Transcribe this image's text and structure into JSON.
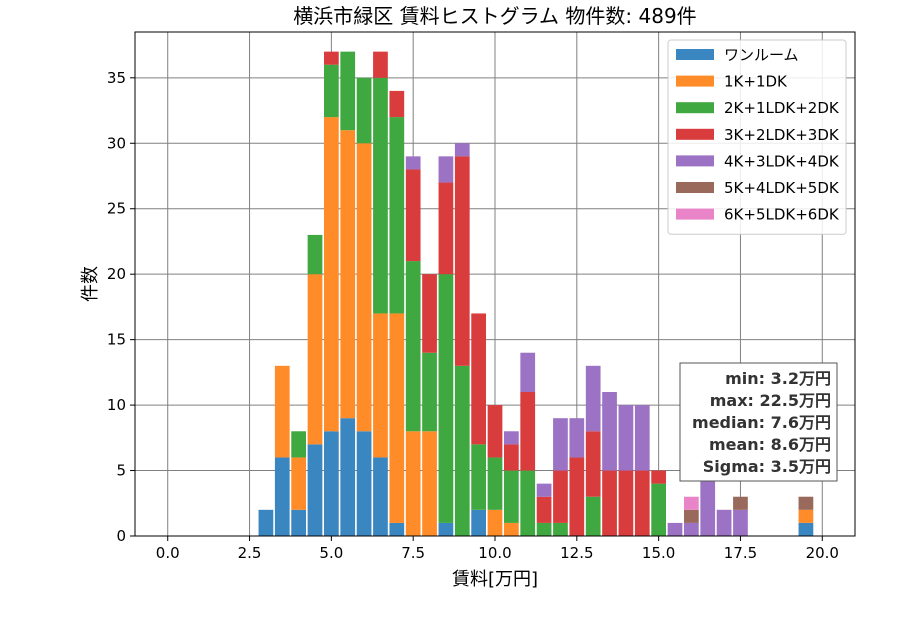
{
  "chart_data": {
    "type": "bar",
    "stacked": true,
    "title": "横浜市緑区 賃料ヒストグラム  物件数: 489件",
    "xlabel": "賃料[万円]",
    "ylabel": "件数",
    "xlim": [
      -1.0,
      21.0
    ],
    "ylim": [
      0,
      38.5
    ],
    "xticks": [
      0.0,
      2.5,
      5.0,
      7.5,
      10.0,
      12.5,
      15.0,
      17.5,
      20.0
    ],
    "xtick_labels": [
      "0.0",
      "2.5",
      "5.0",
      "7.5",
      "10.0",
      "12.5",
      "15.0",
      "17.5",
      "20.0"
    ],
    "yticks": [
      0,
      5,
      10,
      15,
      20,
      25,
      30,
      35
    ],
    "ytick_labels": [
      "0",
      "5",
      "10",
      "15",
      "20",
      "25",
      "30",
      "35"
    ],
    "grid": true,
    "legend_position": "top-right",
    "bin_width": 0.5,
    "x": [
      3.0,
      3.5,
      4.0,
      4.5,
      5.0,
      5.5,
      6.0,
      6.5,
      7.0,
      7.5,
      8.0,
      8.5,
      9.0,
      9.5,
      10.0,
      10.5,
      11.0,
      11.5,
      12.0,
      12.5,
      13.0,
      13.5,
      14.0,
      14.5,
      15.0,
      15.5,
      16.0,
      16.5,
      17.0,
      17.5,
      19.5
    ],
    "series": [
      {
        "name": "ワンルーム",
        "color": "#3a86c1",
        "values": [
          2,
          6,
          2,
          7,
          8,
          9,
          8,
          6,
          1,
          0,
          0,
          1,
          0,
          2,
          0,
          0,
          0,
          0,
          0,
          0,
          0,
          0,
          0,
          0,
          0,
          0,
          0,
          0,
          0,
          0,
          1
        ]
      },
      {
        "name": "1K+1DK",
        "color": "#ff8c28",
        "values": [
          0,
          7,
          4,
          13,
          24,
          22,
          22,
          11,
          16,
          8,
          8,
          0,
          0,
          0,
          2,
          1,
          0,
          0,
          0,
          0,
          0,
          0,
          0,
          0,
          0,
          0,
          0,
          0,
          0,
          0,
          1
        ]
      },
      {
        "name": "2K+1LDK+2DK",
        "color": "#40a840",
        "values": [
          0,
          0,
          2,
          3,
          4,
          6,
          5,
          18,
          15,
          13,
          6,
          19,
          13,
          5,
          4,
          4,
          5,
          1,
          1,
          0,
          3,
          0,
          0,
          0,
          4,
          0,
          0,
          0,
          0,
          0,
          0
        ]
      },
      {
        "name": "3K+2LDK+3DK",
        "color": "#d93c3c",
        "values": [
          0,
          0,
          0,
          0,
          1,
          0,
          0,
          2,
          2,
          7,
          6,
          7,
          16,
          10,
          4,
          2,
          6,
          2,
          4,
          6,
          5,
          5,
          5,
          5,
          1,
          0,
          0,
          0,
          0,
          0,
          0
        ]
      },
      {
        "name": "4K+3LDK+4DK",
        "color": "#9c72c4",
        "values": [
          0,
          0,
          0,
          0,
          0,
          0,
          0,
          0,
          0,
          1,
          0,
          2,
          1,
          0,
          0,
          1,
          3,
          1,
          4,
          3,
          5,
          6,
          5,
          5,
          0,
          1,
          1,
          5,
          2,
          2,
          0
        ]
      },
      {
        "name": "5K+4LDK+5DK",
        "color": "#99695c",
        "values": [
          0,
          0,
          0,
          0,
          0,
          0,
          0,
          0,
          0,
          0,
          0,
          0,
          0,
          0,
          0,
          0,
          0,
          0,
          0,
          0,
          0,
          0,
          0,
          0,
          0,
          0,
          1,
          0,
          0,
          1,
          1
        ]
      },
      {
        "name": "6K+5LDK+6DK",
        "color": "#ea84c9",
        "values": [
          0,
          0,
          0,
          0,
          0,
          0,
          0,
          0,
          0,
          0,
          0,
          0,
          0,
          0,
          0,
          0,
          0,
          0,
          0,
          0,
          0,
          0,
          0,
          0,
          0,
          0,
          1,
          0,
          0,
          0,
          0
        ]
      }
    ],
    "stats_box": [
      "min: 3.2万円",
      "max: 22.5万円",
      "median: 7.6万円",
      "mean: 8.6万円",
      "Sigma: 3.5万円"
    ]
  }
}
